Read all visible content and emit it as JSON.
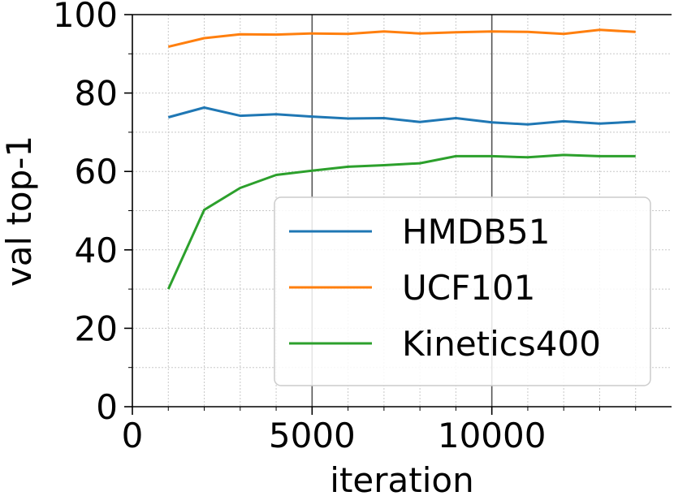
{
  "chart_data": {
    "type": "line",
    "xlabel": "iteration",
    "ylabel": "val top-1",
    "xlim": [
      0,
      15000
    ],
    "ylim": [
      0,
      100
    ],
    "x_ticks": [
      0,
      5000,
      10000
    ],
    "x_tick_labels": [
      "0",
      "5000",
      "10000"
    ],
    "y_ticks": [
      0,
      20,
      40,
      60,
      80,
      100
    ],
    "y_tick_labels": [
      "0",
      "20",
      "40",
      "60",
      "80",
      "100"
    ],
    "major_vlines": [
      5000,
      10000
    ],
    "grid": true,
    "legend_position": "lower-right",
    "x": [
      1000,
      2000,
      3000,
      4000,
      5000,
      6000,
      7000,
      8000,
      9000,
      10000,
      11000,
      12000,
      13000,
      14000
    ],
    "series": [
      {
        "name": "HMDB51",
        "color": "#1f77b4",
        "values": [
          73.8,
          76.3,
          74.2,
          74.6,
          74.0,
          73.5,
          73.6,
          72.6,
          73.6,
          72.5,
          72.0,
          72.8,
          72.2,
          72.7
        ]
      },
      {
        "name": "UCF101",
        "color": "#ff7f0e",
        "values": [
          91.8,
          94.0,
          95.0,
          94.9,
          95.2,
          95.1,
          95.7,
          95.2,
          95.5,
          95.7,
          95.6,
          95.1,
          96.1,
          95.6
        ]
      },
      {
        "name": "Kinetics400",
        "color": "#2ca02c",
        "values": [
          30.0,
          50.2,
          55.8,
          59.1,
          60.2,
          61.2,
          61.6,
          62.1,
          63.9,
          63.9,
          63.6,
          64.2,
          63.9,
          63.9
        ]
      }
    ]
  }
}
